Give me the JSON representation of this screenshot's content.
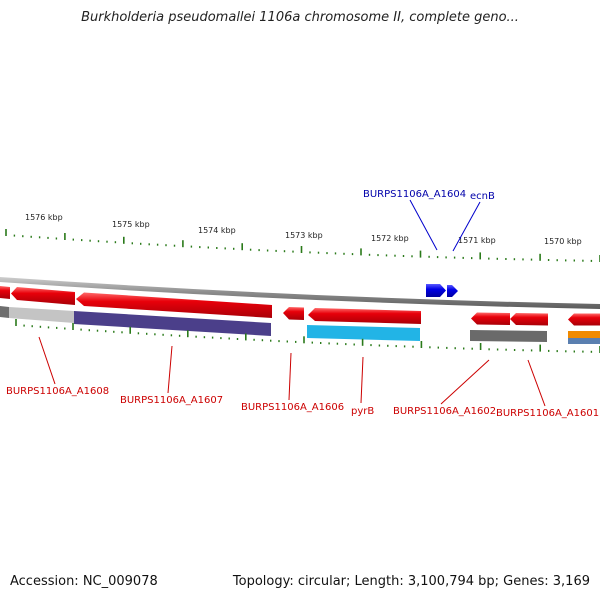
{
  "title": "Burkholderia pseudomallei 1106a chromosome II, complete geno...",
  "footer": {
    "accession": "Accession: NC_009078",
    "stats": "Topology: circular; Length: 3,100,794 bp; Genes: 3,169"
  },
  "colors": {
    "forward_gene": "#e8000a",
    "forward_gene_blue": "#0000e0",
    "backbone": "#8c8c8c",
    "tick": "#2a7a1a",
    "label_red": "#cc0000",
    "label_blue": "#0000aa",
    "purple_band": "#4b3f8a",
    "cyan_band": "#22b4e6",
    "grey_band": "#6a6a6a",
    "orange_band": "#f08a00"
  },
  "scale_labels": [
    "1576 kbp",
    "1575 kbp",
    "1574 kbp",
    "1573 kbp",
    "1572 kbp",
    "1571 kbp",
    "1570 kbp"
  ],
  "top_labels": [
    {
      "name": "BURPS1106A_A1604"
    },
    {
      "name": "ecnB"
    }
  ],
  "bottom_labels": [
    {
      "name": "BURPS1106A_A1608"
    },
    {
      "name": "BURPS1106A_A1607"
    },
    {
      "name": "BURPS1106A_A1606"
    },
    {
      "name": "pyrB"
    },
    {
      "name": "BURPS1106A_A1602"
    },
    {
      "name": "BURPS1106A_A1601"
    }
  ]
}
